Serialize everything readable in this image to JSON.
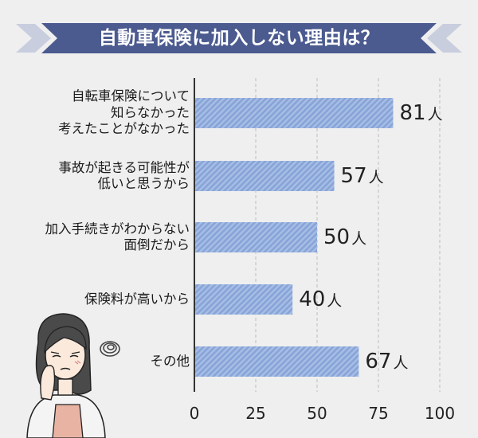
{
  "banner": {
    "title": "自動車保険に加入しない理由は？"
  },
  "chart_data": {
    "type": "bar",
    "orientation": "horizontal",
    "title": "自動車保険に加入しない理由は？",
    "categories": [
      [
        "自転車保険について",
        "知らなかった",
        "考えたことがなかった"
      ],
      [
        "事故が起きる可能性が",
        "低いと思うから"
      ],
      [
        "加入手続きがわからない",
        "面倒だから"
      ],
      [
        "保険料が高いから"
      ],
      [
        "その他"
      ]
    ],
    "values": [
      81,
      57,
      50,
      40,
      67
    ],
    "value_labels": [
      "81",
      "57",
      "50",
      "40",
      "67"
    ],
    "unit": "人",
    "xlim": [
      0,
      100
    ],
    "x_ticks": [
      "0",
      "25",
      "50",
      "75",
      "100"
    ],
    "grid": true,
    "colors": {
      "bar": "#88a5d8",
      "bar_stripe": "#a9bfe6",
      "banner": "#4b5a8f",
      "banner_chevron": "#c9cede",
      "grid": "#bdbdbd",
      "axis": "#333333"
    }
  }
}
